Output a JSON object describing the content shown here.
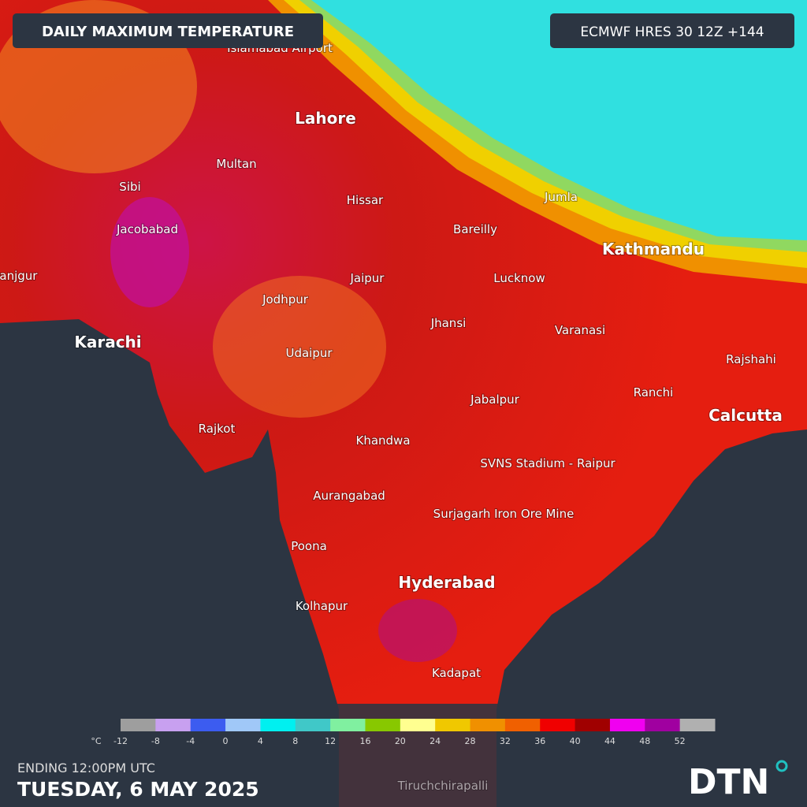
{
  "header": {
    "title": "DAILY MAXIMUM TEMPERATURE",
    "model": "ECMWF HRES 30 12Z +144"
  },
  "cities": [
    "Islamabad Airport",
    "Lahore",
    "Multan",
    "Sibi",
    "Jacobabad",
    "Panjgur",
    "Karachi",
    "Hissar",
    "Bareilly",
    "Jumla",
    "Kathmandu",
    "Jaipur",
    "Lucknow",
    "Jodhpur",
    "Jhansi",
    "Varanasi",
    "Udaipur",
    "Rajshahi",
    "Ranchi",
    "Calcutta",
    "Jabalpur",
    "Rajkot",
    "Khandwa",
    "SVNS Stadium - Raipur",
    "Aurangabad",
    "Surjagarh Iron Ore Mine",
    "Poona",
    "Hyderabad",
    "Kolhapur",
    "Kadapat",
    "Tiruchchirapalli"
  ],
  "legend": {
    "unit": "°C",
    "ticks": [
      -12,
      -8,
      -4,
      0,
      4,
      8,
      12,
      16,
      20,
      24,
      28,
      32,
      36,
      40,
      44,
      48,
      52
    ],
    "colors": [
      "#9e9e9e",
      "#c8a0f0",
      "#3c5cf0",
      "#a0c8f8",
      "#00f0f0",
      "#40c8c8",
      "#80f0a0",
      "#88c800",
      "#ffff90",
      "#f0c800",
      "#f09000",
      "#f06000",
      "#f00000",
      "#a00000",
      "#f000f0",
      "#a000a0",
      "#b0b0b0"
    ]
  },
  "footer": {
    "ending": "ENDING 12:00PM UTC",
    "date": "TUESDAY, 6 MAY 2025",
    "logo": "DTN"
  }
}
